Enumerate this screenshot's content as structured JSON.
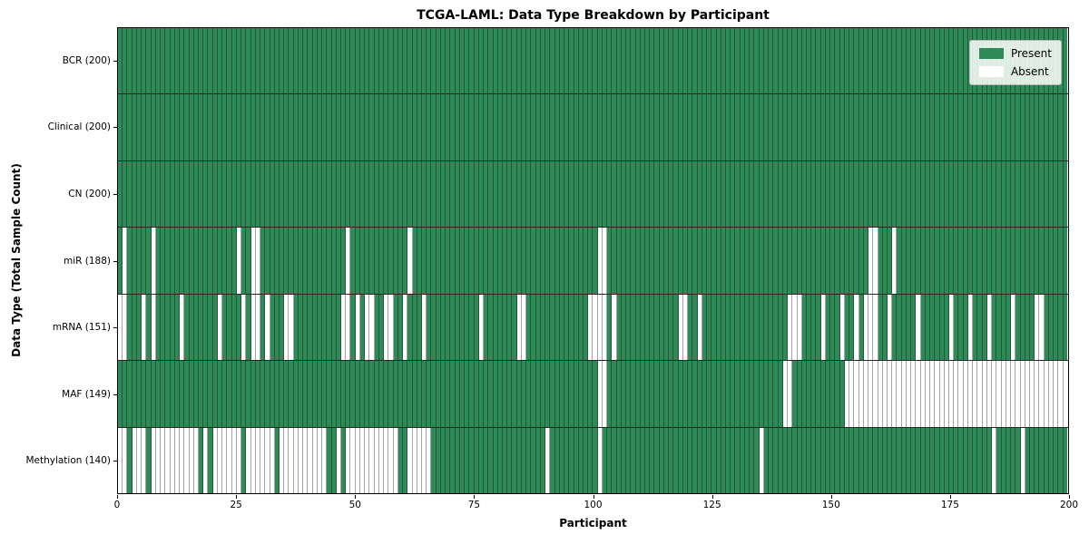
{
  "colors": {
    "present": "#2e8b57",
    "absent": "#ffffff",
    "gridline": "rgba(0,0,0,0.35)",
    "row_divider": "rgba(0,0,0,0.85)"
  },
  "chart_data": {
    "type": "heatmap",
    "title": "TCGA-LAML: Data Type Breakdown by Participant",
    "xlabel": "Participant",
    "ylabel": "Data Type (Total Sample Count)",
    "x_ticks": [
      0,
      25,
      50,
      75,
      100,
      125,
      150,
      175,
      200
    ],
    "x_range": [
      0,
      200
    ],
    "n_participants": 200,
    "grid": "per-cell vertical edges, black horizontal row dividers",
    "legend_position": "upper right",
    "legend": [
      {
        "label": "Present",
        "color": "#2e8b57"
      },
      {
        "label": "Absent",
        "color": "#ffffff"
      }
    ],
    "rows": [
      {
        "name": "BCR",
        "label": "BCR (200)",
        "present_count": 200,
        "absent_count": 0,
        "absent_participants": []
      },
      {
        "name": "Clinical",
        "label": "Clinical (200)",
        "present_count": 200,
        "absent_count": 0,
        "absent_participants": []
      },
      {
        "name": "CN",
        "label": "CN (200)",
        "present_count": 200,
        "absent_count": 0,
        "absent_participants": []
      },
      {
        "name": "miR",
        "label": "miR (188)",
        "present_count": 188,
        "absent_count": 12,
        "absent_participants": [
          1,
          7,
          25,
          28,
          29,
          48,
          61,
          101,
          102,
          158,
          159,
          163
        ]
      },
      {
        "name": "mRNA",
        "label": "mRNA (151)",
        "present_count": 151,
        "absent_count": 49,
        "absent_participants": [
          0,
          1,
          5,
          7,
          13,
          21,
          26,
          28,
          29,
          31,
          35,
          36,
          47,
          48,
          50,
          52,
          53,
          56,
          57,
          60,
          64,
          76,
          84,
          85,
          99,
          100,
          101,
          102,
          104,
          118,
          119,
          122,
          141,
          142,
          143,
          148,
          152,
          155,
          157,
          158,
          159,
          162,
          168,
          175,
          179,
          183,
          188,
          193,
          194
        ]
      },
      {
        "name": "MAF",
        "label": "MAF (149)",
        "present_count": 149,
        "absent_count": 51,
        "absent_participants": [
          101,
          102,
          140,
          141,
          153,
          154,
          155,
          156,
          157,
          158,
          159,
          160,
          161,
          162,
          163,
          164,
          165,
          166,
          167,
          168,
          169,
          170,
          171,
          172,
          173,
          174,
          175,
          176,
          177,
          178,
          179,
          180,
          181,
          182,
          183,
          184,
          185,
          186,
          187,
          188,
          189,
          190,
          191,
          192,
          193,
          194,
          195,
          196,
          197,
          198,
          199
        ]
      },
      {
        "name": "Methylation",
        "label": "Methylation (140)",
        "present_count": 140,
        "absent_count": 60,
        "absent_participants": [
          0,
          1,
          3,
          4,
          5,
          7,
          8,
          9,
          10,
          11,
          12,
          13,
          14,
          15,
          16,
          18,
          20,
          21,
          22,
          23,
          24,
          25,
          27,
          28,
          29,
          30,
          31,
          32,
          34,
          35,
          36,
          37,
          38,
          39,
          40,
          41,
          42,
          43,
          46,
          48,
          49,
          50,
          51,
          52,
          53,
          54,
          55,
          56,
          57,
          58,
          61,
          62,
          63,
          64,
          65,
          90,
          101,
          135,
          184,
          190
        ]
      }
    ]
  }
}
